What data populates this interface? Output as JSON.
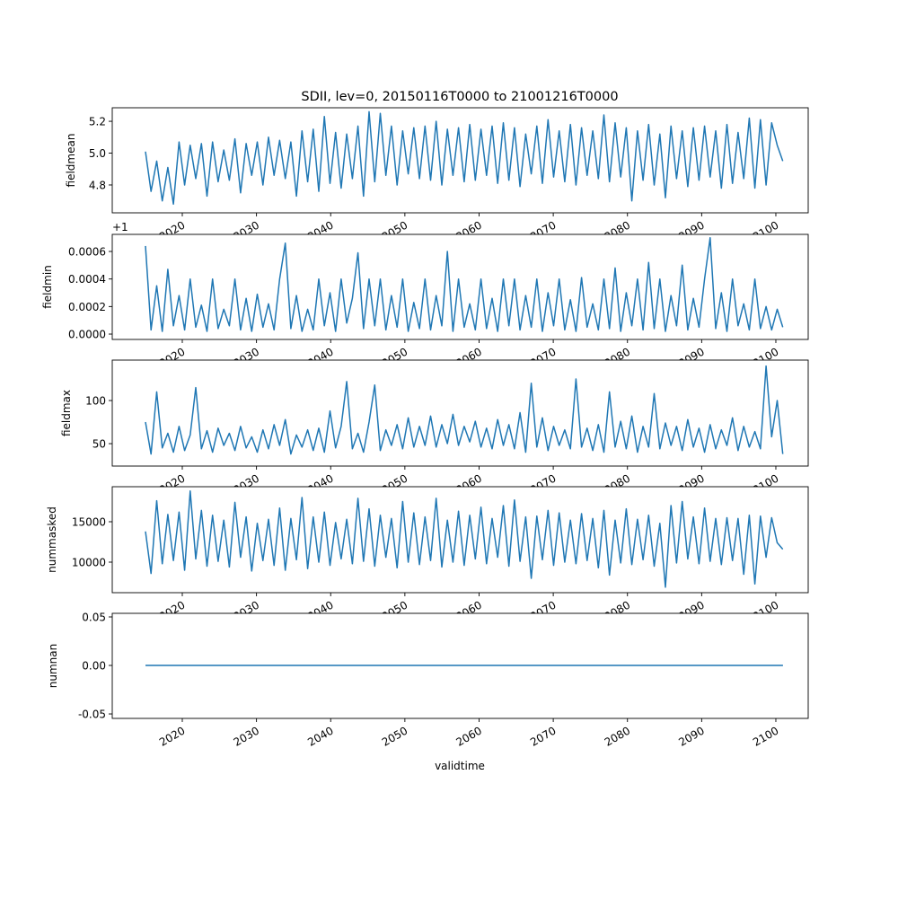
{
  "chart_data": {
    "type": "line",
    "title": "SDII, lev=0, 20150116T0000 to 21001216T0000",
    "xlabel": "validtime",
    "line_color": "#1f77b4",
    "xlim": [
      2010.56,
      2104.36
    ],
    "x_ticks": [
      2020,
      2030,
      2040,
      2050,
      2060,
      2070,
      2080,
      2090,
      2100
    ],
    "x_tick_labels": [
      "2020",
      "2030",
      "2040",
      "2050",
      "2060",
      "2070",
      "2080",
      "2090",
      "2100"
    ],
    "x_start": 2015.04,
    "x_step": 0.7535,
    "panels": [
      {
        "ylabel": "fieldmean",
        "ylim": [
          4.625,
          5.285
        ],
        "y_ticks": [
          4.8,
          5.0,
          5.2
        ],
        "y_tick_labels": [
          "4.8",
          "5.0",
          "5.2"
        ],
        "values": [
          5.01,
          4.76,
          4.95,
          4.7,
          4.91,
          4.68,
          5.07,
          4.8,
          5.05,
          4.84,
          5.06,
          4.73,
          5.07,
          4.82,
          5.02,
          4.83,
          5.09,
          4.75,
          5.06,
          4.86,
          5.07,
          4.8,
          5.1,
          4.86,
          5.08,
          4.84,
          5.07,
          4.73,
          5.14,
          4.82,
          5.15,
          4.76,
          5.23,
          4.81,
          5.13,
          4.78,
          5.12,
          4.84,
          5.17,
          4.73,
          5.26,
          4.82,
          5.25,
          4.86,
          5.17,
          4.8,
          5.14,
          4.87,
          5.16,
          4.84,
          5.17,
          4.83,
          5.2,
          4.8,
          5.15,
          4.86,
          5.16,
          4.82,
          5.18,
          4.83,
          5.15,
          4.86,
          5.17,
          4.81,
          5.19,
          4.83,
          5.16,
          4.79,
          5.12,
          4.87,
          5.17,
          4.81,
          5.21,
          4.85,
          5.14,
          4.82,
          5.18,
          4.8,
          5.16,
          4.86,
          5.14,
          4.84,
          5.24,
          4.82,
          5.19,
          4.85,
          5.16,
          4.7,
          5.14,
          4.83,
          5.18,
          4.8,
          5.12,
          4.72,
          5.17,
          4.84,
          5.14,
          4.79,
          5.16,
          4.83,
          5.17,
          4.85,
          5.14,
          4.78,
          5.18,
          4.81,
          5.13,
          4.84,
          5.22,
          4.78,
          5.21,
          4.8,
          5.19,
          5.05,
          4.95
        ]
      },
      {
        "ylabel": "fieldmin",
        "offset_label": "+1",
        "ylim": [
          -3.9e-05,
          0.000724
        ],
        "y_ticks": [
          0,
          0.0002,
          0.0004,
          0.0006
        ],
        "y_tick_labels": [
          "0.0000",
          "0.0002",
          "0.0004",
          "0.0006"
        ],
        "values": [
          0.00064,
          3e-05,
          0.00035,
          2e-05,
          0.00047,
          6e-05,
          0.00028,
          3e-05,
          0.0004,
          5e-05,
          0.00021,
          2e-05,
          0.0004,
          4e-05,
          0.00018,
          6e-05,
          0.0004,
          3e-05,
          0.00026,
          2e-05,
          0.00029,
          5e-05,
          0.00022,
          3e-05,
          0.0004,
          0.00066,
          4e-05,
          0.00028,
          2e-05,
          0.00018,
          3e-05,
          0.0004,
          6e-05,
          0.0003,
          2e-05,
          0.0004,
          8e-05,
          0.00026,
          0.00059,
          4e-05,
          0.0004,
          6e-05,
          0.0004,
          3e-05,
          0.00028,
          5e-05,
          0.0004,
          2e-05,
          0.00023,
          4e-05,
          0.0004,
          3e-05,
          0.00028,
          6e-05,
          0.0006,
          2e-05,
          0.0004,
          5e-05,
          0.00022,
          3e-05,
          0.0004,
          4e-05,
          0.00026,
          2e-05,
          0.0004,
          6e-05,
          0.0004,
          3e-05,
          0.00028,
          5e-05,
          0.0004,
          2e-05,
          0.0003,
          6e-05,
          0.0004,
          3e-05,
          0.00025,
          2e-05,
          0.00041,
          5e-05,
          0.00022,
          3e-05,
          0.0004,
          4e-05,
          0.00048,
          2e-05,
          0.0003,
          6e-05,
          0.0004,
          3e-05,
          0.00052,
          4e-05,
          0.0004,
          2e-05,
          0.00028,
          6e-05,
          0.0005,
          3e-05,
          0.00026,
          5e-05,
          0.0004,
          0.0007,
          4e-05,
          0.0003,
          2e-05,
          0.0004,
          6e-05,
          0.00022,
          3e-05,
          0.0004,
          4e-05,
          0.0002,
          3e-05,
          0.00018,
          5e-05
        ]
      },
      {
        "ylabel": "fieldmax",
        "ylim": [
          24,
          146.9
        ],
        "y_ticks": [
          50,
          100
        ],
        "y_tick_labels": [
          "50",
          "100"
        ],
        "values": [
          75,
          38,
          110,
          45,
          62,
          40,
          70,
          42,
          60,
          115,
          44,
          65,
          40,
          68,
          48,
          62,
          42,
          70,
          45,
          58,
          40,
          66,
          44,
          72,
          48,
          78,
          38,
          60,
          46,
          66,
          42,
          68,
          40,
          88,
          45,
          70,
          122,
          44,
          62,
          40,
          75,
          118,
          42,
          66,
          48,
          72,
          44,
          80,
          46,
          70,
          48,
          82,
          46,
          72,
          50,
          84,
          48,
          70,
          52,
          76,
          46,
          68,
          44,
          78,
          48,
          72,
          44,
          86,
          40,
          120,
          46,
          80,
          42,
          70,
          48,
          66,
          44,
          125,
          46,
          68,
          42,
          72,
          40,
          110,
          46,
          76,
          44,
          82,
          40,
          70,
          46,
          108,
          44,
          74,
          48,
          70,
          42,
          78,
          46,
          68,
          40,
          72,
          44,
          66,
          48,
          80,
          42,
          70,
          46,
          64,
          44,
          140,
          58,
          100,
          38
        ]
      },
      {
        "ylabel": "nummasked",
        "ylim": [
          6222,
          19333
        ],
        "y_ticks": [
          10000,
          15000
        ],
        "y_tick_labels": [
          "10000",
          "15000"
        ],
        "values": [
          13800,
          8600,
          17600,
          9800,
          15900,
          10200,
          16200,
          9000,
          18800,
          10400,
          16400,
          9500,
          15800,
          10100,
          15200,
          9400,
          17400,
          10600,
          15600,
          8900,
          14800,
          10200,
          15300,
          9600,
          16700,
          9000,
          15400,
          10300,
          18000,
          9200,
          15600,
          10000,
          16200,
          9600,
          14900,
          10400,
          15300,
          9800,
          17900,
          10100,
          16600,
          9500,
          15800,
          10600,
          15400,
          9300,
          17500,
          10000,
          16100,
          9700,
          15600,
          10200,
          17900,
          9400,
          15200,
          10000,
          16300,
          9600,
          15800,
          10400,
          16800,
          9800,
          15400,
          10600,
          17000,
          9500,
          17700,
          10100,
          15600,
          8000,
          15700,
          10300,
          16400,
          9600,
          16100,
          10000,
          15200,
          9800,
          16000,
          10200,
          15400,
          9300,
          16400,
          8400,
          15200,
          9900,
          16600,
          9700,
          15300,
          10300,
          15800,
          9500,
          14800,
          6900,
          17000,
          9900,
          17500,
          10400,
          15600,
          9800,
          16700,
          10100,
          15400,
          9700,
          15500,
          10200,
          15400,
          8500,
          15800,
          7300,
          15700,
          10600,
          15500,
          12400,
          11600
        ]
      },
      {
        "ylabel": "numnan",
        "ylim": [
          -0.0546,
          0.0537
        ],
        "y_ticks": [
          -0.05,
          0,
          0.05
        ],
        "y_tick_labels": [
          "-0.05",
          "0.00",
          "0.05"
        ],
        "x_points": [
          2015.04,
          2100.96
        ],
        "values": [
          0,
          0
        ]
      }
    ]
  }
}
